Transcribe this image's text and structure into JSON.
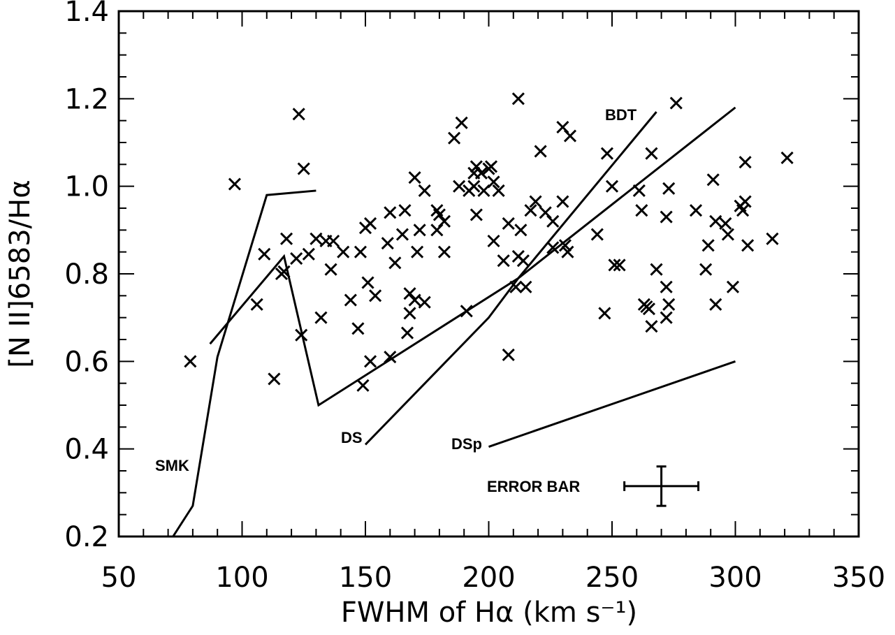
{
  "chart_data": {
    "type": "scatter",
    "xlabel": "FWHM of Hα (km s⁻¹)",
    "ylabel": "[N II]6583/Hα",
    "xlim": [
      50,
      350
    ],
    "ylim": [
      0.2,
      1.4
    ],
    "xticks": [
      "50",
      "100",
      "150",
      "200",
      "250",
      "300",
      "350"
    ],
    "yticks": [
      "0.2",
      "0.4",
      "0.6",
      "0.8",
      "1.0",
      "1.2",
      "1.4"
    ],
    "points": [
      [
        79,
        0.6
      ],
      [
        97,
        1.005
      ],
      [
        106,
        0.73
      ],
      [
        109,
        0.845
      ],
      [
        113,
        0.56
      ],
      [
        116,
        0.8
      ],
      [
        117,
        0.805
      ],
      [
        118,
        0.88
      ],
      [
        122,
        0.835
      ],
      [
        123,
        1.165
      ],
      [
        124,
        0.66
      ],
      [
        125,
        1.04
      ],
      [
        127,
        0.845
      ],
      [
        130,
        0.88
      ],
      [
        132,
        0.7
      ],
      [
        134,
        0.875
      ],
      [
        136,
        0.81
      ],
      [
        137,
        0.875
      ],
      [
        141,
        0.85
      ],
      [
        144,
        0.74
      ],
      [
        147,
        0.675
      ],
      [
        148,
        0.85
      ],
      [
        149,
        0.545
      ],
      [
        150,
        0.905
      ],
      [
        151,
        0.78
      ],
      [
        152,
        0.6
      ],
      [
        152,
        0.915
      ],
      [
        154,
        0.75
      ],
      [
        159,
        0.87
      ],
      [
        160,
        0.94
      ],
      [
        160,
        0.61
      ],
      [
        162,
        0.825
      ],
      [
        165,
        0.89
      ],
      [
        166,
        0.945
      ],
      [
        167,
        0.665
      ],
      [
        168,
        0.71
      ],
      [
        168,
        0.755
      ],
      [
        170,
        0.74
      ],
      [
        170,
        1.02
      ],
      [
        171,
        0.85
      ],
      [
        172,
        0.9
      ],
      [
        174,
        0.735
      ],
      [
        174,
        0.99
      ],
      [
        179,
        0.945
      ],
      [
        179,
        0.9
      ],
      [
        180,
        0.935
      ],
      [
        182,
        0.92
      ],
      [
        182,
        0.85
      ],
      [
        186,
        1.11
      ],
      [
        188,
        1.0
      ],
      [
        189,
        1.145
      ],
      [
        191,
        0.715
      ],
      [
        192,
        0.99
      ],
      [
        194,
        1.03
      ],
      [
        194,
        1.0
      ],
      [
        195,
        1.045
      ],
      [
        195,
        0.935
      ],
      [
        197,
        1.03
      ],
      [
        198,
        0.99
      ],
      [
        200,
        1.04
      ],
      [
        201,
        1.045
      ],
      [
        202,
        1.01
      ],
      [
        202,
        0.875
      ],
      [
        204,
        0.99
      ],
      [
        206,
        0.83
      ],
      [
        208,
        0.615
      ],
      [
        208,
        0.915
      ],
      [
        211,
        0.77
      ],
      [
        212,
        1.2
      ],
      [
        212,
        0.84
      ],
      [
        213,
        0.9
      ],
      [
        214,
        0.83
      ],
      [
        215,
        0.77
      ],
      [
        217,
        0.945
      ],
      [
        219,
        0.965
      ],
      [
        221,
        1.08
      ],
      [
        223,
        0.94
      ],
      [
        226,
        0.92
      ],
      [
        226,
        0.86
      ],
      [
        230,
        0.965
      ],
      [
        230,
        1.135
      ],
      [
        231,
        0.865
      ],
      [
        232,
        0.85
      ],
      [
        233,
        1.115
      ],
      [
        244,
        0.89
      ],
      [
        247,
        0.71
      ],
      [
        248,
        1.075
      ],
      [
        250,
        1.0
      ],
      [
        251,
        0.82
      ],
      [
        253,
        0.82
      ],
      [
        261,
        0.99
      ],
      [
        262,
        0.945
      ],
      [
        263,
        0.73
      ],
      [
        264,
        0.725
      ],
      [
        265,
        0.72
      ],
      [
        266,
        1.075
      ],
      [
        266,
        0.68
      ],
      [
        268,
        0.81
      ],
      [
        272,
        0.77
      ],
      [
        272,
        0.93
      ],
      [
        272,
        0.7
      ],
      [
        273,
        0.995
      ],
      [
        273,
        0.73
      ],
      [
        276,
        1.19
      ],
      [
        284,
        0.945
      ],
      [
        288,
        0.81
      ],
      [
        289,
        0.865
      ],
      [
        291,
        1.015
      ],
      [
        292,
        0.92
      ],
      [
        292,
        0.73
      ],
      [
        296,
        0.915
      ],
      [
        297,
        0.89
      ],
      [
        299,
        0.77
      ],
      [
        302,
        0.955
      ],
      [
        303,
        0.945
      ],
      [
        304,
        0.965
      ],
      [
        304,
        1.055
      ],
      [
        305,
        0.865
      ],
      [
        315,
        0.88
      ],
      [
        321,
        1.065
      ]
    ],
    "lines": [
      {
        "label": "SMK",
        "points": [
          [
            72,
            0.2
          ],
          [
            80,
            0.27
          ],
          [
            90,
            0.61
          ],
          [
            110,
            0.98
          ],
          [
            130,
            0.99
          ]
        ]
      },
      {
        "label": "",
        "points": [
          [
            87,
            0.64
          ],
          [
            117,
            0.84
          ],
          [
            131,
            0.5
          ],
          [
            212,
            0.79
          ],
          [
            300,
            1.18
          ]
        ]
      },
      {
        "label": "DS",
        "points": [
          [
            150,
            0.41
          ],
          [
            200,
            0.7
          ],
          [
            212,
            0.79
          ]
        ]
      },
      {
        "label": "BDT",
        "points": [
          [
            212,
            0.79
          ],
          [
            268,
            1.17
          ]
        ]
      },
      {
        "label": "DSp",
        "points": [
          [
            200,
            0.405
          ],
          [
            300,
            0.6
          ]
        ]
      }
    ],
    "labels": {
      "smk": "SMK",
      "ds": "DS",
      "dsp": "DSp",
      "bdt": "BDT",
      "error": "ERROR BAR"
    },
    "error_bar": {
      "x": 270,
      "y": 0.315,
      "xerr": 15,
      "yerr": 0.045
    }
  }
}
